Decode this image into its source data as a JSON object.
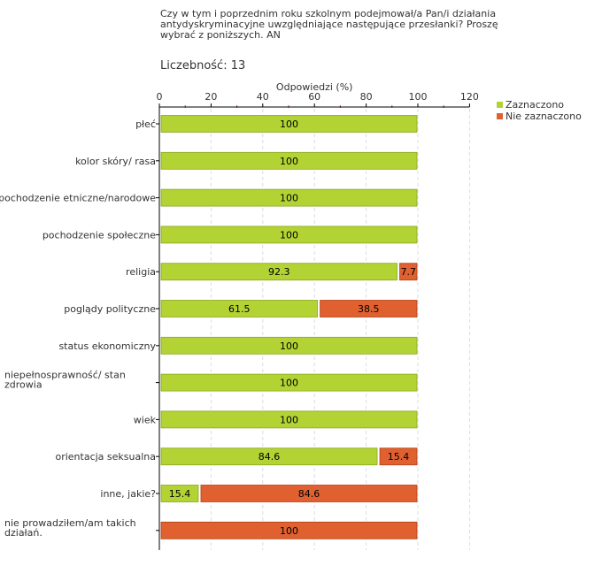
{
  "header": {
    "question": "Czy w tym i poprzednim roku szkolnym podejmował/a Pan/i działania antydyskryminacyjne uwzględniające następujące przesłanki? Proszę wybrać z poniższych. AN",
    "count_label": "Liczebność:",
    "count_value": "13"
  },
  "chart_data": {
    "type": "bar",
    "orientation": "horizontal",
    "stacked": true,
    "xlabel": "Odpowiedzi (%)",
    "xlim": [
      0,
      120
    ],
    "xticks": [
      0,
      20,
      40,
      60,
      80,
      100,
      120
    ],
    "grid": true,
    "legend_position": "top-right",
    "categories": [
      [
        "płeć"
      ],
      [
        "kolor skóry/ rasa"
      ],
      [
        "pochodzenie etniczne/narodowe"
      ],
      [
        "pochodzenie społeczne"
      ],
      [
        "religia"
      ],
      [
        "poglądy polityczne"
      ],
      [
        "status ekonomiczny"
      ],
      [
        "niepełnosprawność/ stan",
        "zdrowia"
      ],
      [
        "wiek"
      ],
      [
        "orientacja seksualna"
      ],
      [
        "inne, jakie?"
      ],
      [
        "nie prowadziłem/am takich",
        "działań."
      ]
    ],
    "series": [
      {
        "name": "Zaznaczono",
        "color": "#b3d334",
        "values": [
          100,
          100,
          100,
          100,
          92.3,
          61.5,
          100,
          100,
          100,
          84.6,
          15.4,
          0
        ]
      },
      {
        "name": "Nie zaznaczono",
        "color": "#e06030",
        "values": [
          0,
          0,
          0,
          0,
          7.7,
          38.5,
          0,
          0,
          0,
          15.4,
          84.6,
          100
        ]
      }
    ]
  }
}
